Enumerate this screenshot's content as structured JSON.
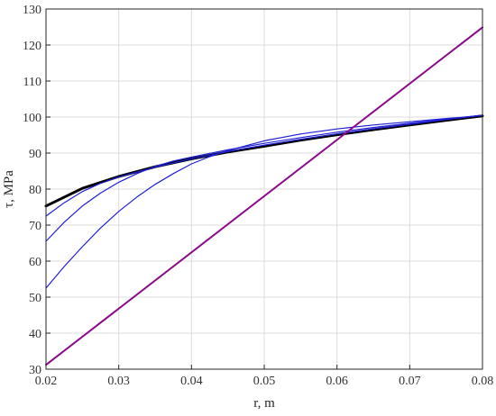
{
  "chart_data": {
    "type": "line",
    "xlabel": "r, m",
    "ylabel": "τ, MPa",
    "xlim": [
      0.02,
      0.08
    ],
    "ylim": [
      30,
      130
    ],
    "xticks": [
      0.02,
      0.03,
      0.04,
      0.05,
      0.06,
      0.07,
      0.08
    ],
    "yticks": [
      30,
      40,
      50,
      60,
      70,
      80,
      90,
      100,
      110,
      120,
      130
    ],
    "xtick_labels": [
      "0.02",
      "0.03",
      "0.04",
      "0.05",
      "0.06",
      "0.07",
      "0.08"
    ],
    "ytick_labels": [
      "30",
      "40",
      "50",
      "60",
      "70",
      "80",
      "90",
      "100",
      "110",
      "120",
      "130"
    ],
    "grid": true,
    "series": [
      {
        "color": "#000000",
        "style": "thick",
        "points": [
          [
            0.02,
            75.3
          ],
          [
            0.025,
            80.2
          ],
          [
            0.03,
            83.5
          ],
          [
            0.035,
            86.2
          ],
          [
            0.04,
            88.4
          ],
          [
            0.045,
            90.3
          ],
          [
            0.05,
            91.9
          ],
          [
            0.055,
            93.6
          ],
          [
            0.06,
            95.1
          ],
          [
            0.065,
            96.5
          ],
          [
            0.07,
            97.8
          ],
          [
            0.075,
            99.1
          ],
          [
            0.08,
            100.3
          ]
        ]
      },
      {
        "color": "#1f1fd6",
        "style": "thin",
        "points": [
          [
            0.02,
            72.5
          ],
          [
            0.0225,
            76.2
          ],
          [
            0.025,
            79.3
          ],
          [
            0.0275,
            81.6
          ],
          [
            0.03,
            83.4
          ],
          [
            0.035,
            86.1
          ],
          [
            0.04,
            88.4
          ],
          [
            0.045,
            90.4
          ],
          [
            0.05,
            92.2
          ],
          [
            0.055,
            93.8
          ],
          [
            0.06,
            95.3
          ],
          [
            0.065,
            96.7
          ],
          [
            0.07,
            98.0
          ],
          [
            0.075,
            99.3
          ],
          [
            0.08,
            100.5
          ]
        ]
      },
      {
        "color": "#1f1fd6",
        "style": "thin",
        "points": [
          [
            0.02,
            65.5
          ],
          [
            0.0225,
            70.8
          ],
          [
            0.025,
            75.3
          ],
          [
            0.0275,
            78.9
          ],
          [
            0.03,
            81.9
          ],
          [
            0.0325,
            84.3
          ],
          [
            0.035,
            86.3
          ],
          [
            0.0375,
            87.8
          ],
          [
            0.04,
            88.9
          ],
          [
            0.045,
            90.9
          ],
          [
            0.05,
            92.7
          ],
          [
            0.055,
            94.3
          ],
          [
            0.06,
            95.8
          ],
          [
            0.065,
            97.1
          ],
          [
            0.07,
            98.3
          ],
          [
            0.075,
            99.4
          ],
          [
            0.08,
            100.5
          ]
        ]
      },
      {
        "color": "#1f1fd6",
        "style": "thin",
        "points": [
          [
            0.02,
            52.5
          ],
          [
            0.0225,
            58.5
          ],
          [
            0.025,
            64.0
          ],
          [
            0.0275,
            69.2
          ],
          [
            0.03,
            73.8
          ],
          [
            0.0325,
            77.8
          ],
          [
            0.035,
            81.3
          ],
          [
            0.0375,
            84.3
          ],
          [
            0.04,
            87.0
          ],
          [
            0.0425,
            89.0
          ],
          [
            0.045,
            90.7
          ],
          [
            0.05,
            93.4
          ],
          [
            0.055,
            95.3
          ],
          [
            0.06,
            96.7
          ],
          [
            0.065,
            97.8
          ],
          [
            0.07,
            98.7
          ],
          [
            0.075,
            99.6
          ],
          [
            0.08,
            100.4
          ]
        ]
      },
      {
        "color": "#8b0a8b",
        "style": "medium",
        "points": [
          [
            0.02,
            31.2
          ],
          [
            0.08,
            124.9
          ]
        ]
      }
    ]
  }
}
